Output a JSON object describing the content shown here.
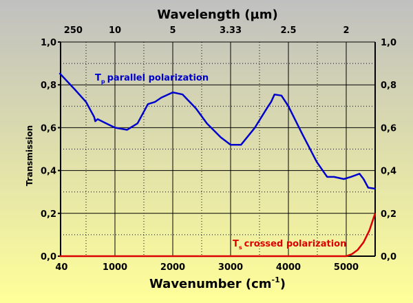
{
  "chart_data": {
    "type": "line",
    "title": "",
    "top_axis_label": "Wavelength (µm)",
    "xlabel": "Wavenumber (cm",
    "xlabel_sup": "-1",
    "xlabel_end": ")",
    "ylabel": "Transmission",
    "xlim": [
      40,
      5500
    ],
    "ylim": [
      0,
      1
    ],
    "grid": true,
    "x_ticks": [
      {
        "value": 40,
        "label": "40"
      },
      {
        "value": 1000,
        "label": "1000"
      },
      {
        "value": 2000,
        "label": "2000"
      },
      {
        "value": 3000,
        "label": "3000"
      },
      {
        "value": 4000,
        "label": "4000"
      },
      {
        "value": 5000,
        "label": "5000"
      }
    ],
    "top_ticks": [
      {
        "value": 40,
        "label": "250"
      },
      {
        "value": 1000,
        "label": "10"
      },
      {
        "value": 2000,
        "label": "5"
      },
      {
        "value": 3000,
        "label": "3.33"
      },
      {
        "value": 4000,
        "label": "2.5"
      },
      {
        "value": 5000,
        "label": "2"
      }
    ],
    "y_ticks": [
      {
        "value": 0,
        "label": "0,0"
      },
      {
        "value": 0.2,
        "label": "0,2"
      },
      {
        "value": 0.4,
        "label": "0,4"
      },
      {
        "value": 0.6,
        "label": "0,6"
      },
      {
        "value": 0.8,
        "label": "0,8"
      },
      {
        "value": 1.0,
        "label": "1,0"
      }
    ],
    "series": [
      {
        "name": "parallel polarization",
        "symbol": "T",
        "subscript": "p",
        "color": "#0000cc",
        "x": [
          40,
          300,
          500,
          640,
          660,
          700,
          850,
          1000,
          1210,
          1390,
          1570,
          1690,
          1800,
          2000,
          2170,
          2400,
          2590,
          2830,
          3000,
          3180,
          3420,
          3650,
          3700,
          3760,
          3880,
          4000,
          4240,
          4490,
          4670,
          4790,
          4960,
          5080,
          5230,
          5300,
          5380,
          5500
        ],
        "y": [
          0.855,
          0.78,
          0.72,
          0.65,
          0.63,
          0.64,
          0.62,
          0.6,
          0.59,
          0.62,
          0.71,
          0.72,
          0.74,
          0.765,
          0.755,
          0.69,
          0.62,
          0.555,
          0.52,
          0.52,
          0.6,
          0.7,
          0.72,
          0.755,
          0.75,
          0.7,
          0.57,
          0.44,
          0.37,
          0.37,
          0.36,
          0.37,
          0.385,
          0.36,
          0.32,
          0.315
        ]
      },
      {
        "name": "crossed polarization",
        "symbol": "T",
        "subscript": "s",
        "color": "#dd0000",
        "x": [
          40,
          1000,
          2000,
          3000,
          4000,
          5000,
          5100,
          5200,
          5300,
          5400,
          5500
        ],
        "y": [
          0,
          0,
          0,
          0,
          0,
          0,
          0.01,
          0.03,
          0.065,
          0.12,
          0.2
        ]
      }
    ]
  }
}
